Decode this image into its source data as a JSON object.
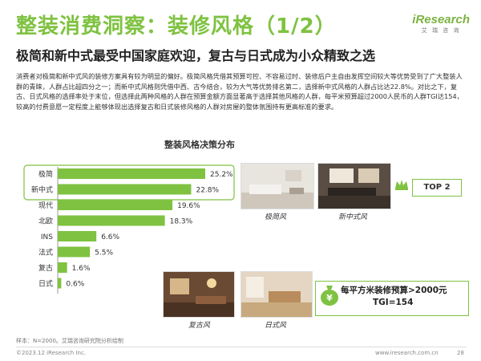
{
  "header": {
    "title": "整装消费洞察：装修风格（1/2）",
    "subtitle": "极简和新中式最受中国家庭欢迎，复古与日式成为小众精致之选",
    "logo_text": "iResearch",
    "logo_sub": "艾 瑞 咨 询"
  },
  "body_text": "消费者对极简和新中式风的装修方案具有较为明显的偏好。极简风格凭借其预算可控、不容易过时、装修后户主自由发挥空间较大等优势受到了广大整装人群的青睐，人群占比超四分之一；而新中式风格则凭借中西、古今结合，较为大气等优势排名第二，选择新中式风格的人群占比达22.8%。对比之下，复古、日式风格的选择率处于末位，但选择此两种风格的人群在预算金额方面显著高于选择其他风格的人群，每平米预算超过2000人民币的人群TGI达154，较高的付费意愿一定程度上能够体现出选择复古和日式装修风格的人群对房屋的整体氛围持有更高标准的要求。",
  "chart_data": {
    "type": "bar",
    "orientation": "horizontal",
    "title": "整装风格决策分布",
    "categories": [
      "极简",
      "新中式",
      "现代",
      "北欧",
      "INS",
      "法式",
      "复古",
      "日式"
    ],
    "values": [
      25.2,
      22.8,
      19.6,
      18.3,
      6.6,
      5.5,
      1.6,
      0.6
    ],
    "value_labels": [
      "25.2%",
      "22.8%",
      "19.6%",
      "18.3%",
      "6.6%",
      "5.5%",
      "1.6%",
      "0.6%"
    ],
    "highlight": [
      "极简",
      "新中式"
    ],
    "xlim": [
      0,
      30
    ],
    "colors": {
      "bar": "#7fc241",
      "highlight_box": "#7fc241"
    }
  },
  "photos": {
    "minimal_caption": "极简风",
    "neo_chinese_caption": "新中式风",
    "retro_caption": "复古风",
    "japanese_caption": "日式风"
  },
  "callouts": {
    "top2": "TOP 2",
    "budget_line1": "每平方米装修预算>2000元",
    "budget_line2": "TGI=154"
  },
  "footer": {
    "source": "样本：N=2000。艾瑞咨询研究院分析绘制",
    "copyright": "©2023.12 iResearch Inc.",
    "url": "www.iresearch.com.cn",
    "page": "28"
  },
  "colors": {
    "accent": "#7fc241",
    "text": "#333333"
  }
}
